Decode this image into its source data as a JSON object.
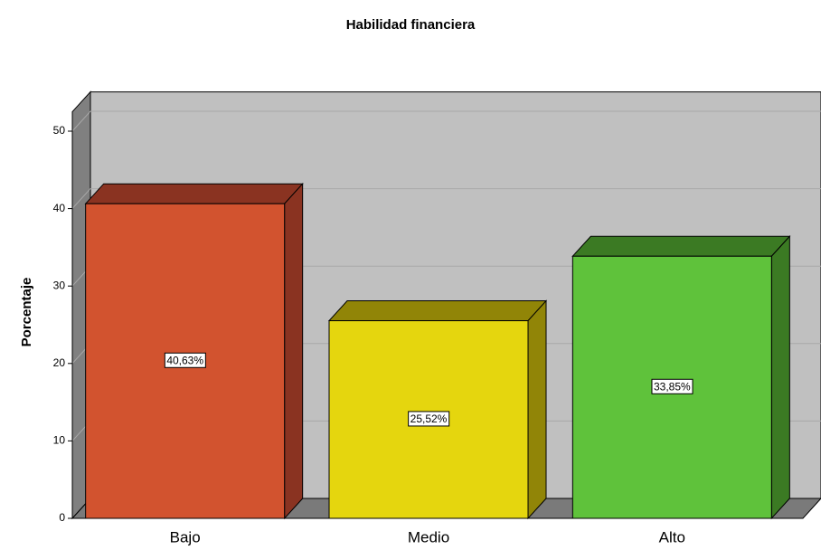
{
  "chart_data": {
    "type": "bar3d",
    "title": "Habilidad financiera",
    "y_label": "Porcentaje",
    "categories": [
      "Bajo",
      "Medio",
      "Alto"
    ],
    "values": [
      40.63,
      25.52,
      33.85
    ],
    "value_labels": [
      "40,63%",
      "25,52%",
      "33,85%"
    ],
    "colors": [
      "#d2532f",
      "#e5d60e",
      "#5fc23b"
    ],
    "side_colors": [
      "#8a3321",
      "#918507",
      "#3b7a23"
    ],
    "ylim": [
      0,
      52.5
    ],
    "yticks": [
      0,
      10,
      20,
      30,
      40,
      50
    ],
    "grid": true
  }
}
